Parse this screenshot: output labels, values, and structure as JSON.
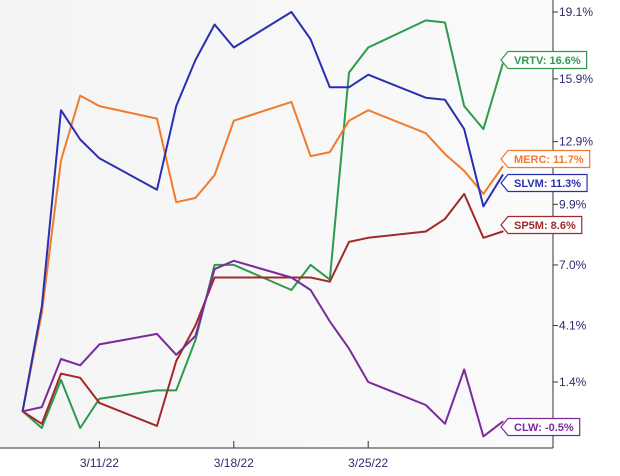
{
  "chart_data": {
    "type": "line",
    "title": "",
    "xlabel": "",
    "ylabel": "",
    "x_ticks": [
      "3/11/22",
      "3/18/22",
      "3/25/22"
    ],
    "y_ticks": [
      {
        "value": 1.4,
        "label": "1.4%"
      },
      {
        "value": 4.1,
        "label": "4.1%"
      },
      {
        "value": 7.0,
        "label": "7.0%"
      },
      {
        "value": 9.9,
        "label": "9.9%"
      },
      {
        "value": 12.9,
        "label": "12.9%"
      },
      {
        "value": 15.9,
        "label": "15.9%"
      },
      {
        "value": 19.1,
        "label": "19.1%"
      }
    ],
    "ylim": [
      -1.2,
      19.3
    ],
    "grid": false,
    "x": [
      "3/7/22",
      "3/8/22",
      "3/9/22",
      "3/10/22",
      "3/11/22",
      "3/14/22",
      "3/15/22",
      "3/16/22",
      "3/17/22",
      "3/18/22",
      "3/21/22",
      "3/22/22",
      "3/23/22",
      "3/24/22",
      "3/25/22",
      "3/28/22",
      "3/29/22",
      "3/30/22",
      "3/31/22",
      "4/1/22"
    ],
    "series": [
      {
        "name": "VRTV",
        "color": "#2e9a4e",
        "label": "VRTV: 16.6%",
        "values": [
          0.0,
          -0.8,
          1.5,
          -0.8,
          0.6,
          1.0,
          1.0,
          3.4,
          7.0,
          7.0,
          5.8,
          7.0,
          6.3,
          16.2,
          17.4,
          18.7,
          18.6,
          14.6,
          13.5,
          16.6
        ]
      },
      {
        "name": "MERC",
        "color": "#f07a2e",
        "label": "MERC: 11.7%",
        "values": [
          0.0,
          4.7,
          12.0,
          15.1,
          14.6,
          14.0,
          10.0,
          10.2,
          11.3,
          13.9,
          14.8,
          12.2,
          12.4,
          13.9,
          14.4,
          13.3,
          12.3,
          11.5,
          10.4,
          11.7
        ]
      },
      {
        "name": "SLVM",
        "color": "#2a2fb0",
        "label": "SLVM: 11.3%",
        "values": [
          0.0,
          5.0,
          14.4,
          13.0,
          12.1,
          10.6,
          14.6,
          16.8,
          18.5,
          17.4,
          19.1,
          17.8,
          15.5,
          15.5,
          16.1,
          15.0,
          14.9,
          13.5,
          9.8,
          11.3
        ]
      },
      {
        "name": "SP5M",
        "color": "#a02a2a",
        "label": "SP5M: 8.6%",
        "values": [
          0.0,
          -0.6,
          1.8,
          1.6,
          0.4,
          -0.7,
          2.4,
          4.1,
          6.4,
          6.4,
          6.4,
          6.4,
          6.2,
          8.1,
          8.3,
          8.6,
          9.2,
          10.4,
          8.3,
          8.6
        ]
      },
      {
        "name": "CLW",
        "color": "#7a2a9a",
        "label": "CLW: -0.5%",
        "values": [
          0.0,
          0.2,
          2.5,
          2.2,
          3.2,
          3.7,
          2.7,
          3.6,
          6.8,
          7.2,
          6.4,
          5.8,
          4.3,
          3.0,
          1.4,
          0.3,
          -0.6,
          2.0,
          -1.2,
          -0.5
        ]
      }
    ]
  }
}
